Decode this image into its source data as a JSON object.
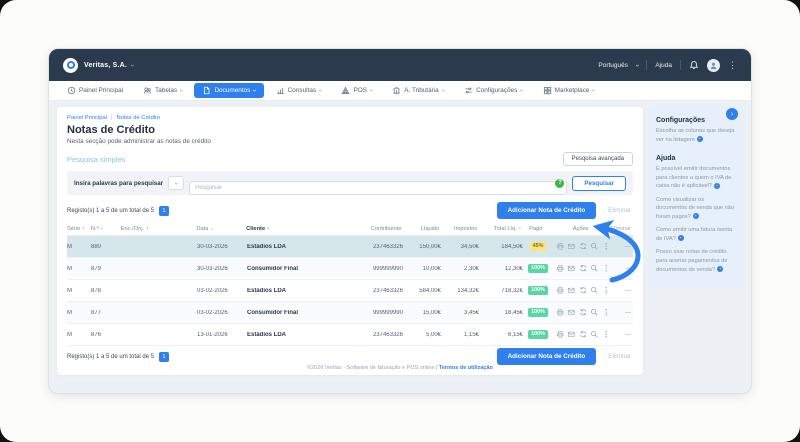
{
  "topbar": {
    "company": "Veritas, S.A.",
    "language": "Português",
    "help": "Ajuda"
  },
  "nav": {
    "items": [
      {
        "label": "Painel Principal",
        "icon": "clock",
        "dropdown": false,
        "active": false
      },
      {
        "label": "Tabelas",
        "icon": "users",
        "dropdown": true,
        "active": false
      },
      {
        "label": "Documentos",
        "icon": "file",
        "dropdown": true,
        "active": true
      },
      {
        "label": "Consultas",
        "icon": "chart",
        "dropdown": true,
        "active": false
      },
      {
        "label": "POS",
        "icon": "pos",
        "dropdown": true,
        "active": false
      },
      {
        "label": "A. Tributária",
        "icon": "bank",
        "dropdown": true,
        "active": false
      },
      {
        "label": "Configurações",
        "icon": "sliders",
        "dropdown": true,
        "active": false
      },
      {
        "label": "Marketplace",
        "icon": "grid",
        "dropdown": true,
        "active": false
      }
    ]
  },
  "breadcrumb": [
    "Painel Principal",
    "Notas de Crédito"
  ],
  "page": {
    "title": "Notas de Crédito",
    "subtitle": "Nesta secção pode administrar as notas de crédito"
  },
  "search": {
    "section_label": "Pesquisa simples",
    "advanced_button": "Pesquisa avançada",
    "input_label": "Insira palavras para pesquisar",
    "placeholder": "Pesquisar",
    "help_icon": "?",
    "search_button": "Pesquisar"
  },
  "records": {
    "summary": "Registo(s) 1 a 5 de um total de 5",
    "page": "1",
    "add_button": "Adicionar Nota de Crédito",
    "delete_button": "Eliminar"
  },
  "table": {
    "headers": [
      {
        "label": "Série",
        "sort": "right"
      },
      {
        "label": "N.º",
        "sort": "right"
      },
      {
        "label": "Enc./Orç.",
        "sort": "right"
      },
      {
        "label": "Data",
        "sort": "down"
      },
      {
        "label": "Cliente",
        "sort": "right"
      },
      {
        "label": "Contribuinte",
        "sort": null
      },
      {
        "label": "Líquido",
        "sort": null
      },
      {
        "label": "Impostos",
        "sort": null
      },
      {
        "label": "Total Líq.",
        "sort": "right"
      },
      {
        "label": "Pago",
        "sort": null
      },
      {
        "label": "Ações",
        "sort": null
      },
      {
        "label": "Eliminar",
        "sort": null
      }
    ],
    "rows": [
      {
        "serie": "M",
        "numero": "880",
        "enc": "",
        "data": "30-03-2026",
        "cliente": "Estádios LDA",
        "contribuinte": "237463326",
        "liquido": "150,00€",
        "impostos": "34,50€",
        "total": "184,50€",
        "pago": "45%",
        "pago_variant": "warning",
        "eliminar": "—",
        "highlighted": true
      },
      {
        "serie": "M",
        "numero": "879",
        "enc": "",
        "data": "30-03-2026",
        "cliente": "Consumidor Final",
        "contribuinte": "999999990",
        "liquido": "10,00€",
        "impostos": "2,30€",
        "total": "12,30€",
        "pago": "100%",
        "pago_variant": "paid",
        "eliminar": "—",
        "highlighted": false
      },
      {
        "serie": "M",
        "numero": "878",
        "enc": "",
        "data": "03-02-2026",
        "cliente": "Estádios LDA",
        "contribuinte": "237463326",
        "liquido": "584,00€",
        "impostos": "134,32€",
        "total": "718,32€",
        "pago": "100%",
        "pago_variant": "paid",
        "eliminar": "—",
        "highlighted": false
      },
      {
        "serie": "M",
        "numero": "877",
        "enc": "",
        "data": "03-02-2026",
        "cliente": "Consumidor Final",
        "contribuinte": "999999990",
        "liquido": "15,00€",
        "impostos": "3,45€",
        "total": "18,45€",
        "pago": "100%",
        "pago_variant": "paid",
        "eliminar": "—",
        "highlighted": false
      },
      {
        "serie": "M",
        "numero": "876",
        "enc": "",
        "data": "13-01-2026",
        "cliente": "Estádios LDA",
        "contribuinte": "237463326",
        "liquido": "5,00€",
        "impostos": "1,15€",
        "total": "6,15€",
        "pago": "100%",
        "pago_variant": "paid",
        "eliminar": "—",
        "highlighted": false
      }
    ]
  },
  "sidebar": {
    "settings_title": "Configurações",
    "settings_text": "Escolha as colunas que deseja ver na listagem",
    "help_title": "Ajuda",
    "help_links": [
      "É possível emitir documentos para clientes a quem o IVA de caixa não é aplicável?",
      "Como visualizar os documentos de venda que não foram pagos?",
      "Como emitir uma fatura isenta de IVA?",
      "Posso usar notas de crédito para acertar pagamentos de documentos de venda?"
    ]
  },
  "footer": {
    "copyright": "©2026 Veritas - Software de faturação e POS online",
    "terms": "Termos de utilização"
  },
  "colors": {
    "accent_blue": "#2f80ed",
    "topbar_navy": "#2b3a4d",
    "row_highlight": "#d6e7ec",
    "badge_warning_bg": "#f9e57d",
    "badge_paid_bg": "#58d7a4",
    "sidebar_bg": "#e7f0fa",
    "content_bg": "#edf1f5",
    "help_circle_green": "#3cb54b"
  }
}
